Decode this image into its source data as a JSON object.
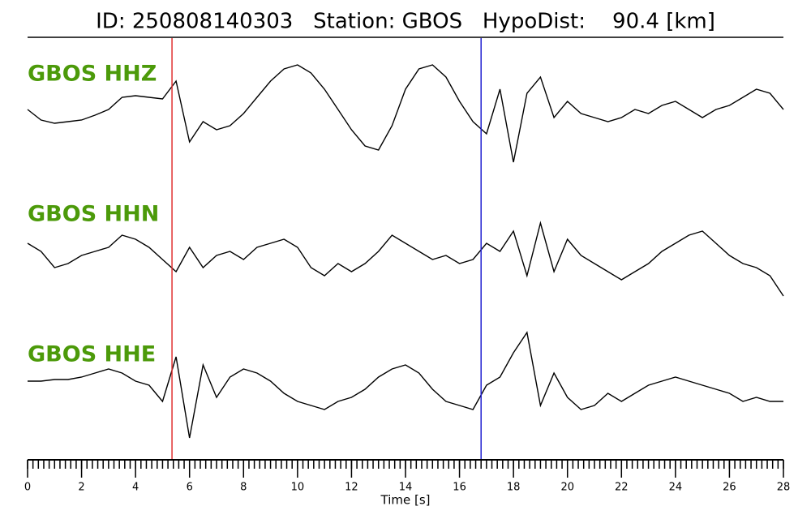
{
  "chart_data": {
    "type": "line",
    "title": "ID: 250808140303   Station: GBOS   HypoDist:    90.4 [km]",
    "xlabel": "Time [s]",
    "xlim": [
      0,
      28
    ],
    "xticks": [
      0,
      2,
      4,
      6,
      8,
      10,
      12,
      14,
      16,
      18,
      20,
      22,
      24,
      26,
      28
    ],
    "xminor": 0.2,
    "x": [
      0,
      0.5,
      1,
      1.5,
      2,
      2.5,
      3,
      3.5,
      4,
      4.5,
      5,
      5.5,
      6,
      6.5,
      7,
      7.5,
      8,
      8.5,
      9,
      9.5,
      10,
      10.5,
      11,
      11.5,
      12,
      12.5,
      13,
      13.5,
      14,
      14.5,
      15,
      15.5,
      16,
      16.5,
      17,
      17.5,
      18,
      18.5,
      19,
      19.5,
      20,
      20.5,
      21,
      21.5,
      22,
      22.5,
      23,
      23.5,
      24,
      24.5,
      25,
      25.5,
      26,
      26.5,
      27,
      27.5,
      28
    ],
    "series": [
      {
        "name": "GBOS HHZ",
        "color": "#000000",
        "label_color": "#4c9a0a",
        "values": [
          5,
          -8,
          -12,
          -10,
          -8,
          -2,
          5,
          20,
          22,
          20,
          18,
          40,
          -35,
          -10,
          -20,
          -15,
          0,
          20,
          40,
          55,
          60,
          50,
          30,
          5,
          -20,
          -40,
          -45,
          -15,
          30,
          55,
          60,
          45,
          15,
          -10,
          -25,
          30,
          -60,
          25,
          45,
          -5,
          15,
          0,
          -5,
          -10,
          -5,
          5,
          0,
          10,
          15,
          5,
          -5,
          5,
          10,
          20,
          30,
          25,
          5
        ]
      },
      {
        "name": "GBOS HHN",
        "color": "#000000",
        "label_color": "#4c9a0a",
        "values": [
          15,
          5,
          -15,
          -10,
          0,
          5,
          10,
          25,
          20,
          10,
          -5,
          -20,
          10,
          -15,
          0,
          5,
          -5,
          10,
          15,
          20,
          10,
          -15,
          -25,
          -10,
          -20,
          -10,
          5,
          25,
          15,
          5,
          -5,
          0,
          -10,
          -5,
          15,
          5,
          30,
          -25,
          40,
          -20,
          20,
          0,
          -10,
          -20,
          -30,
          -20,
          -10,
          5,
          15,
          25,
          30,
          15,
          0,
          -10,
          -15,
          -25,
          -50
        ]
      },
      {
        "name": "GBOS HHE",
        "color": "#000000",
        "label_color": "#4c9a0a",
        "values": [
          10,
          10,
          12,
          12,
          15,
          20,
          25,
          20,
          10,
          5,
          -15,
          40,
          -60,
          30,
          -10,
          15,
          25,
          20,
          10,
          -5,
          -15,
          -20,
          -25,
          -15,
          -10,
          0,
          15,
          25,
          30,
          20,
          0,
          -15,
          -20,
          -25,
          5,
          15,
          45,
          70,
          -20,
          20,
          -10,
          -25,
          -20,
          -5,
          -15,
          -5,
          5,
          10,
          15,
          10,
          5,
          0,
          -5,
          -15,
          -10,
          -15,
          -15
        ]
      }
    ],
    "vlines": [
      {
        "x": 5.35,
        "color": "#e03030"
      },
      {
        "x": 16.8,
        "color": "#2020d0"
      }
    ]
  }
}
